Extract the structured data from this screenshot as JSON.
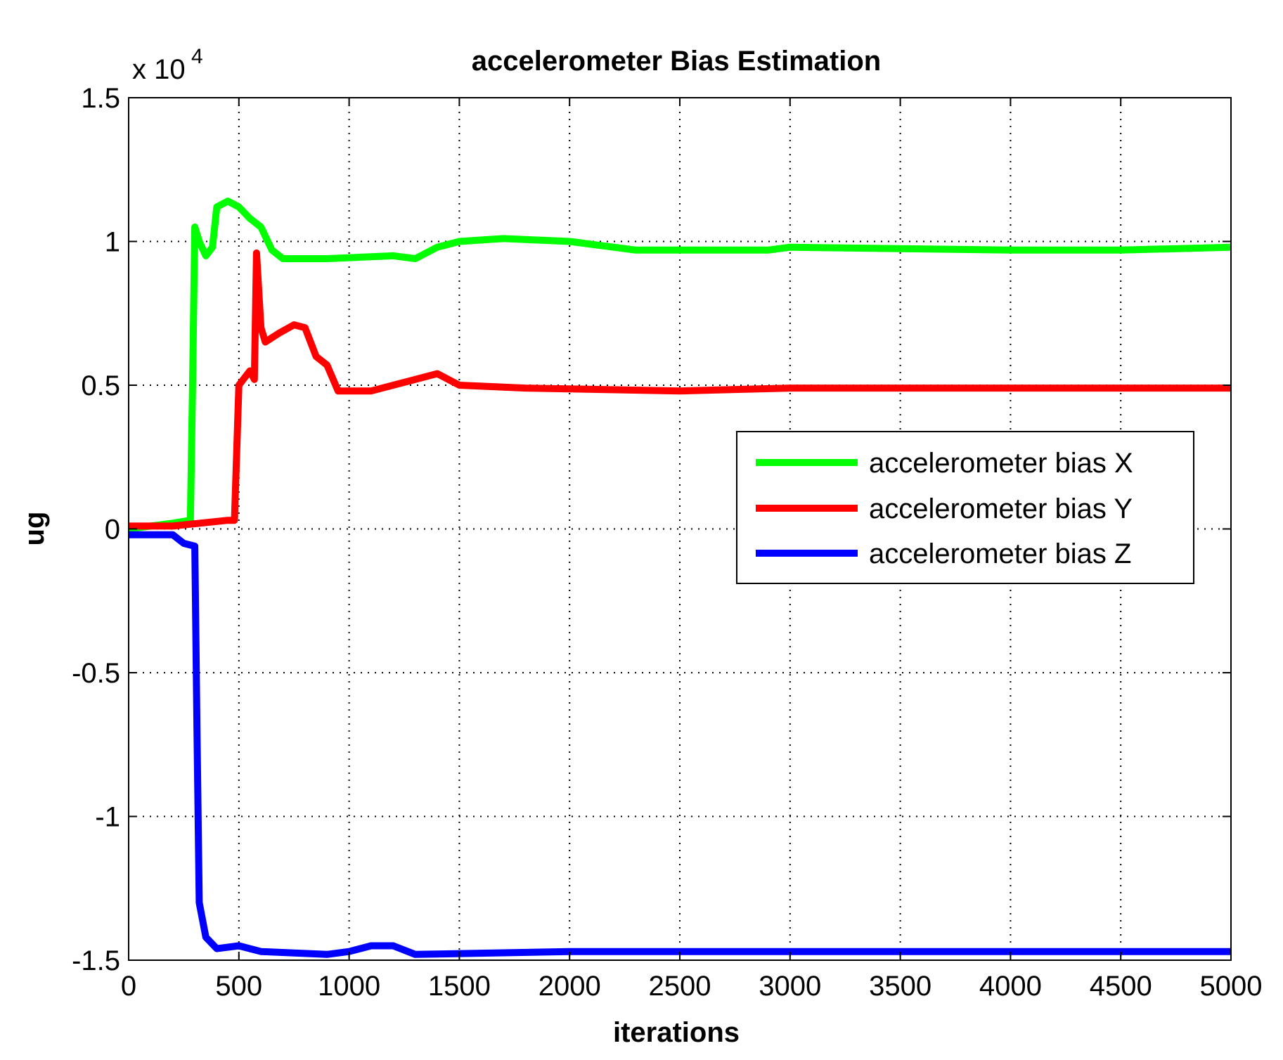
{
  "chart_data": {
    "type": "line",
    "title": "accelerometer Bias Estimation",
    "xlabel": "iterations",
    "ylabel": "ug",
    "y_exponent_label": "x 10",
    "y_exponent": "4",
    "xlim": [
      0,
      5000
    ],
    "ylim": [
      -1.5,
      1.5
    ],
    "grid": true,
    "legend_position": "center-right",
    "x_ticks": [
      {
        "value": 0,
        "label": "0"
      },
      {
        "value": 500,
        "label": "500"
      },
      {
        "value": 1000,
        "label": "1000"
      },
      {
        "value": 1500,
        "label": "1500"
      },
      {
        "value": 2000,
        "label": "2000"
      },
      {
        "value": 2500,
        "label": "2500"
      },
      {
        "value": 3000,
        "label": "3000"
      },
      {
        "value": 3500,
        "label": "3500"
      },
      {
        "value": 4000,
        "label": "4000"
      },
      {
        "value": 4500,
        "label": "4500"
      },
      {
        "value": 5000,
        "label": "5000"
      }
    ],
    "y_ticks": [
      {
        "value": 1.5,
        "label": "1.5"
      },
      {
        "value": 1,
        "label": "1"
      },
      {
        "value": 0.5,
        "label": "0.5"
      },
      {
        "value": 0,
        "label": "0"
      },
      {
        "value": -0.5,
        "label": "-0.5"
      },
      {
        "value": -1,
        "label": "-1"
      },
      {
        "value": -1.5,
        "label": "-1.5"
      }
    ],
    "series": [
      {
        "name": "accelerometer bias X",
        "color": "#00ff00",
        "points": [
          [
            0,
            0
          ],
          [
            200,
            0.02
          ],
          [
            280,
            0.03
          ],
          [
            290,
            0.5
          ],
          [
            300,
            1.05
          ],
          [
            320,
            1.0
          ],
          [
            350,
            0.95
          ],
          [
            380,
            0.98
          ],
          [
            400,
            1.12
          ],
          [
            450,
            1.14
          ],
          [
            500,
            1.12
          ],
          [
            550,
            1.08
          ],
          [
            600,
            1.05
          ],
          [
            650,
            0.97
          ],
          [
            700,
            0.94
          ],
          [
            900,
            0.94
          ],
          [
            1200,
            0.95
          ],
          [
            1300,
            0.94
          ],
          [
            1400,
            0.98
          ],
          [
            1500,
            1.0
          ],
          [
            1700,
            1.01
          ],
          [
            2000,
            1.0
          ],
          [
            2200,
            0.98
          ],
          [
            2300,
            0.97
          ],
          [
            2900,
            0.97
          ],
          [
            3000,
            0.98
          ],
          [
            4000,
            0.97
          ],
          [
            4500,
            0.97
          ],
          [
            5000,
            0.98
          ]
        ]
      },
      {
        "name": "accelerometer bias Y",
        "color": "#ff0000",
        "points": [
          [
            0,
            0.01
          ],
          [
            200,
            0.01
          ],
          [
            450,
            0.03
          ],
          [
            480,
            0.03
          ],
          [
            500,
            0.5
          ],
          [
            550,
            0.55
          ],
          [
            570,
            0.52
          ],
          [
            580,
            0.96
          ],
          [
            600,
            0.7
          ],
          [
            620,
            0.65
          ],
          [
            680,
            0.68
          ],
          [
            750,
            0.71
          ],
          [
            800,
            0.7
          ],
          [
            850,
            0.6
          ],
          [
            900,
            0.57
          ],
          [
            950,
            0.48
          ],
          [
            1100,
            0.48
          ],
          [
            1300,
            0.52
          ],
          [
            1400,
            0.54
          ],
          [
            1500,
            0.5
          ],
          [
            1800,
            0.49
          ],
          [
            2500,
            0.48
          ],
          [
            3000,
            0.49
          ],
          [
            4000,
            0.49
          ],
          [
            5000,
            0.49
          ]
        ]
      },
      {
        "name": "accelerometer bias Z",
        "color": "#0000ff",
        "points": [
          [
            0,
            -0.02
          ],
          [
            200,
            -0.02
          ],
          [
            250,
            -0.05
          ],
          [
            300,
            -0.06
          ],
          [
            310,
            -0.7
          ],
          [
            320,
            -1.3
          ],
          [
            350,
            -1.42
          ],
          [
            400,
            -1.46
          ],
          [
            500,
            -1.45
          ],
          [
            600,
            -1.47
          ],
          [
            900,
            -1.48
          ],
          [
            1000,
            -1.47
          ],
          [
            1100,
            -1.45
          ],
          [
            1200,
            -1.45
          ],
          [
            1300,
            -1.48
          ],
          [
            2000,
            -1.47
          ],
          [
            3000,
            -1.47
          ],
          [
            4000,
            -1.47
          ],
          [
            5000,
            -1.47
          ]
        ]
      }
    ]
  }
}
